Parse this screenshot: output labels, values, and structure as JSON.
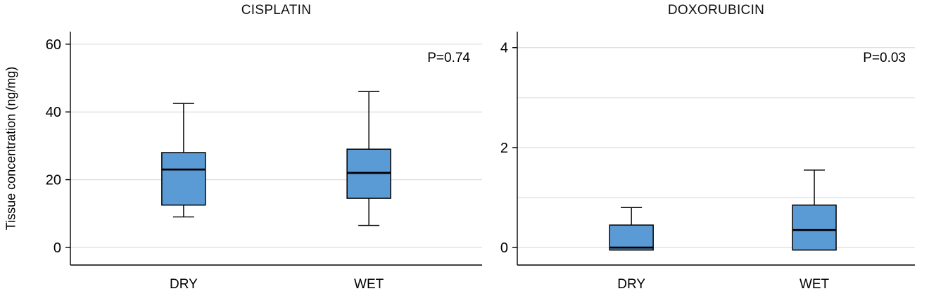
{
  "figure": {
    "background": "#ffffff"
  },
  "colors": {
    "box_fill": "#5b9bd5",
    "box_stroke": "#000000",
    "median": "#000000",
    "whisker": "#000000",
    "grid": "#d6d6d6",
    "axis": "#000000",
    "text": "#000000"
  },
  "chart_data": [
    {
      "type": "boxplot",
      "title": "CISPLATIN",
      "annotation": "P=0.74",
      "ylabel": "Tissue concentration (ng/mg)",
      "xlabel": "",
      "categories": [
        "DRY",
        "WET"
      ],
      "yticks": [
        0,
        20,
        40,
        60
      ],
      "gridlines": [
        0,
        20,
        40,
        60
      ],
      "ylim": [
        -5.2,
        63.7
      ],
      "grid": true,
      "legend": false,
      "series": [
        {
          "category": "DRY",
          "whisker_low": 9,
          "q1": 12.5,
          "median": 23,
          "q3": 28,
          "whisker_high": 42.5
        },
        {
          "category": "WET",
          "whisker_low": 6.5,
          "q1": 14.5,
          "median": 22,
          "q3": 29,
          "whisker_high": 46
        }
      ]
    },
    {
      "type": "boxplot",
      "title": "DOXORUBICIN",
      "annotation": "P=0.03",
      "ylabel": "",
      "xlabel": "",
      "categories": [
        "DRY",
        "WET"
      ],
      "yticks": [
        0,
        2,
        4
      ],
      "gridlines": [
        0,
        1,
        2,
        3,
        4
      ],
      "ylim": [
        -0.35,
        4.32
      ],
      "grid": true,
      "legend": false,
      "series": [
        {
          "category": "DRY",
          "whisker_low": -0.05,
          "q1": -0.05,
          "median": 0,
          "q3": 0.45,
          "whisker_high": 0.8
        },
        {
          "category": "WET",
          "whisker_low": -0.05,
          "q1": -0.05,
          "median": 0.35,
          "q3": 0.85,
          "whisker_high": 1.55
        }
      ]
    }
  ]
}
